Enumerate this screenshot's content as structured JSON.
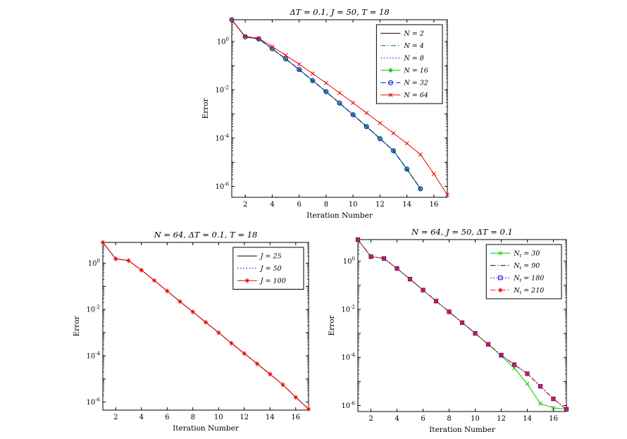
{
  "figure": {
    "background": "#ffffff"
  },
  "chart_data": [
    {
      "name": "top-varying-N",
      "type": "line",
      "title": "ΔT = 0.1, J = 50, T = 18",
      "xlabel": "Iteration Number",
      "ylabel": "Error",
      "xlim": [
        1,
        17
      ],
      "xticks": [
        2,
        4,
        6,
        8,
        10,
        12,
        14,
        16
      ],
      "ytick_exponents": [
        0,
        -2,
        -4,
        -6
      ],
      "ylim_log": [
        -6.45,
        0.9
      ],
      "grid": false,
      "legend_position": "top-right",
      "series": [
        {
          "label": "N = 2",
          "color": "#000000",
          "line": "solid",
          "marker": "none",
          "x": [
            1,
            2,
            3,
            4,
            5,
            6,
            7,
            8,
            9,
            10,
            11,
            12,
            13,
            14,
            15
          ],
          "y": [
            7.9,
            1.55,
            1.26,
            0.5,
            0.19,
            0.069,
            0.024,
            0.0083,
            0.0028,
            0.00093,
            0.0003,
            9.5e-05,
            3e-05,
            5.2e-06,
            8e-07
          ]
        },
        {
          "label": "N = 4",
          "color": "#007f00",
          "line": "dashdot",
          "marker": "none",
          "x": [
            1,
            2,
            3,
            4,
            5,
            6,
            7,
            8,
            9,
            10,
            11,
            12,
            13,
            14,
            15
          ],
          "y": [
            7.9,
            1.55,
            1.26,
            0.5,
            0.19,
            0.069,
            0.024,
            0.0083,
            0.0028,
            0.00093,
            0.0003,
            9.5e-05,
            3e-05,
            5.2e-06,
            8e-07
          ]
        },
        {
          "label": "N = 8",
          "color": "#0000ee",
          "line": "dotted",
          "marker": "none",
          "x": [
            1,
            2,
            3,
            4,
            5,
            6,
            7,
            8,
            9,
            10,
            11,
            12,
            13,
            14,
            15
          ],
          "y": [
            7.9,
            1.55,
            1.26,
            0.5,
            0.19,
            0.069,
            0.024,
            0.0083,
            0.0028,
            0.00093,
            0.0003,
            9.5e-05,
            3e-05,
            5.2e-06,
            8e-07
          ]
        },
        {
          "label": "N = 16",
          "color": "#00b400",
          "line": "solid",
          "marker": "star",
          "x": [
            1,
            2,
            3,
            4,
            5,
            6,
            7,
            8,
            9,
            10,
            11,
            12,
            13,
            14,
            15
          ],
          "y": [
            7.9,
            1.55,
            1.26,
            0.5,
            0.19,
            0.069,
            0.024,
            0.0083,
            0.0028,
            0.00093,
            0.0003,
            9.5e-05,
            3e-05,
            5.2e-06,
            8e-07
          ]
        },
        {
          "label": "N = 32",
          "color": "#0000ee",
          "line": "dashed",
          "marker": "circle",
          "x": [
            1,
            2,
            3,
            4,
            5,
            6,
            7,
            8,
            9,
            10,
            11,
            12,
            13,
            14,
            15
          ],
          "y": [
            7.9,
            1.55,
            1.26,
            0.5,
            0.19,
            0.069,
            0.024,
            0.0083,
            0.0028,
            0.00093,
            0.0003,
            9.5e-05,
            3e-05,
            5.2e-06,
            8e-07
          ]
        },
        {
          "label": "N = 64",
          "color": "#ee0000",
          "line": "solid",
          "marker": "x",
          "x": [
            1,
            2,
            3,
            4,
            5,
            6,
            7,
            8,
            9,
            10,
            11,
            12,
            13,
            14,
            15,
            16,
            17
          ],
          "y": [
            7.9,
            1.62,
            1.35,
            0.62,
            0.27,
            0.115,
            0.047,
            0.019,
            0.0074,
            0.0029,
            0.0011,
            0.00042,
            0.00016,
            6e-05,
            2.1e-05,
            3.3e-06,
            4.5e-07
          ]
        }
      ]
    },
    {
      "name": "bottom-left-varying-J",
      "type": "line",
      "title": "N = 64, ΔT = 0.1, T = 18",
      "xlabel": "Iteration Number",
      "ylabel": "Error",
      "xlim": [
        1,
        17
      ],
      "xticks": [
        2,
        4,
        6,
        8,
        10,
        12,
        14,
        16
      ],
      "ytick_exponents": [
        0,
        -2,
        -4,
        -6
      ],
      "ylim_log": [
        -6.35,
        0.9
      ],
      "grid": false,
      "legend_position": "top-right",
      "series": [
        {
          "label": "J = 25",
          "color": "#000000",
          "line": "solid",
          "marker": "none",
          "x": [
            1,
            2,
            3,
            4,
            5,
            6,
            7,
            8,
            9,
            10,
            11,
            12,
            13,
            14,
            15,
            16,
            17
          ],
          "y": [
            7.9,
            1.55,
            1.3,
            0.5,
            0.18,
            0.063,
            0.022,
            0.0079,
            0.0028,
            0.001,
            0.00035,
            0.000125,
            4.5e-05,
            1.6e-05,
            5.6e-06,
            1.6e-06,
            5e-07
          ]
        },
        {
          "label": "J = 50",
          "color": "#0000ee",
          "line": "dotted",
          "marker": "none",
          "x": [
            1,
            2,
            3,
            4,
            5,
            6,
            7,
            8,
            9,
            10,
            11,
            12,
            13,
            14,
            15,
            16,
            17
          ],
          "y": [
            7.9,
            1.55,
            1.3,
            0.5,
            0.18,
            0.063,
            0.022,
            0.0079,
            0.0028,
            0.001,
            0.00035,
            0.000125,
            4.5e-05,
            1.6e-05,
            5.6e-06,
            1.6e-06,
            5e-07
          ]
        },
        {
          "label": "J = 100",
          "color": "#ee0000",
          "line": "solid",
          "marker": "star",
          "x": [
            1,
            2,
            3,
            4,
            5,
            6,
            7,
            8,
            9,
            10,
            11,
            12,
            13,
            14,
            15,
            16,
            17
          ],
          "y": [
            7.9,
            1.55,
            1.3,
            0.5,
            0.18,
            0.063,
            0.022,
            0.0079,
            0.0028,
            0.001,
            0.00035,
            0.000125,
            4.5e-05,
            1.6e-05,
            5.6e-06,
            1.6e-06,
            5e-07
          ]
        }
      ]
    },
    {
      "name": "bottom-right-varying-Nt",
      "type": "line",
      "title": "N = 64, J = 50, ΔT = 0.1",
      "xlabel": "Iteration Number",
      "ylabel": "Error",
      "xlim": [
        1,
        17
      ],
      "xticks": [
        2,
        4,
        6,
        8,
        10,
        12,
        14,
        16
      ],
      "ytick_exponents": [
        0,
        -2,
        -4,
        -6
      ],
      "ylim_log": [
        -6.25,
        0.9
      ],
      "grid": false,
      "legend_position": "top-right",
      "series": [
        {
          "label": "N_t = 30",
          "color": "#00c800",
          "line": "solid",
          "marker": "x",
          "x": [
            1,
            2,
            3,
            4,
            5,
            6,
            7,
            8,
            9,
            10,
            11,
            12,
            13,
            14,
            15,
            16,
            17
          ],
          "y": [
            7.9,
            1.55,
            1.3,
            0.5,
            0.18,
            0.063,
            0.022,
            0.0079,
            0.0028,
            0.001,
            0.00035,
            0.000115,
            3.6e-05,
            7.9e-06,
            1.2e-06,
            8e-07,
            7e-07
          ]
        },
        {
          "label": "N_t = 90",
          "color": "#000000",
          "line": "dashdot",
          "marker": "none",
          "x": [
            1,
            2,
            3,
            4,
            5,
            6,
            7,
            8,
            9,
            10,
            11,
            12,
            13,
            14,
            15,
            16,
            17
          ],
          "y": [
            7.9,
            1.55,
            1.3,
            0.5,
            0.18,
            0.063,
            0.022,
            0.0079,
            0.0028,
            0.001,
            0.00035,
            0.000125,
            5e-05,
            2.1e-05,
            6.3e-06,
            1.9e-06,
            7e-07
          ]
        },
        {
          "label": "N_t = 180",
          "color": "#0000ee",
          "line": "dotted",
          "marker": "square",
          "x": [
            1,
            2,
            3,
            4,
            5,
            6,
            7,
            8,
            9,
            10,
            11,
            12,
            13,
            14,
            15,
            16,
            17
          ],
          "y": [
            7.9,
            1.55,
            1.3,
            0.5,
            0.18,
            0.063,
            0.022,
            0.0079,
            0.0028,
            0.001,
            0.00035,
            0.000125,
            5e-05,
            2.1e-05,
            6.3e-06,
            1.9e-06,
            7e-07
          ]
        },
        {
          "label": "N_t = 210",
          "color": "#ee0000",
          "line": "dashdot",
          "marker": "star",
          "x": [
            1,
            2,
            3,
            4,
            5,
            6,
            7,
            8,
            9,
            10,
            11,
            12,
            13,
            14,
            15,
            16,
            17
          ],
          "y": [
            7.9,
            1.55,
            1.3,
            0.5,
            0.18,
            0.063,
            0.022,
            0.0079,
            0.0028,
            0.001,
            0.00035,
            0.000125,
            5e-05,
            2.1e-05,
            6.3e-06,
            1.9e-06,
            7e-07
          ]
        }
      ]
    }
  ]
}
